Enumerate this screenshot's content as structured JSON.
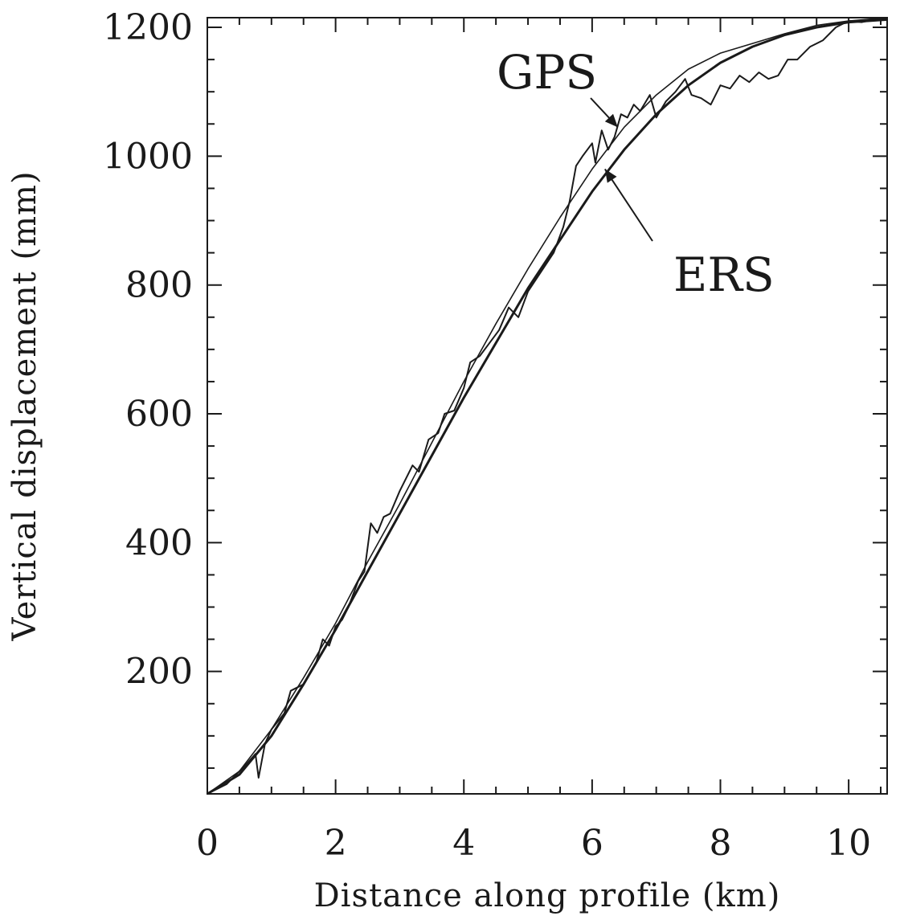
{
  "chart_data": {
    "type": "line",
    "title": "",
    "xlabel": "Distance along profile (km)",
    "ylabel": "Vertical displacement (mm)",
    "xlim": [
      0,
      10.6
    ],
    "ylim": [
      10,
      1215
    ],
    "x_ticks": [
      0,
      2,
      4,
      6,
      8,
      10
    ],
    "x_tick_labels": [
      "0",
      "2",
      "4",
      "6",
      "8",
      "10"
    ],
    "y_ticks": [
      200,
      400,
      600,
      800,
      1000,
      1200
    ],
    "y_tick_labels": [
      "200",
      "400",
      "600",
      "800",
      "1000",
      "1200"
    ],
    "grid": false,
    "annotations": [
      {
        "text": "GPS",
        "points_to": [
          6.4,
          1045
        ]
      },
      {
        "text": "ERS",
        "points_to": [
          6.2,
          980
        ]
      }
    ],
    "series": [
      {
        "name": "GPS",
        "style": "noisy",
        "x": [
          0.0,
          0.3,
          0.6,
          0.75,
          0.8,
          0.9,
          1.0,
          1.2,
          1.3,
          1.5,
          1.7,
          1.8,
          1.9,
          2.0,
          2.1,
          2.2,
          2.35,
          2.45,
          2.55,
          2.65,
          2.75,
          2.85,
          3.0,
          3.2,
          3.3,
          3.45,
          3.6,
          3.7,
          3.85,
          4.0,
          4.1,
          4.25,
          4.4,
          4.55,
          4.7,
          4.85,
          5.0,
          5.2,
          5.4,
          5.55,
          5.65,
          5.75,
          5.85,
          6.0,
          6.05,
          6.15,
          6.25,
          6.35,
          6.45,
          6.55,
          6.65,
          6.75,
          6.9,
          7.0,
          7.15,
          7.3,
          7.45,
          7.55,
          7.7,
          7.85,
          8.0,
          8.15,
          8.3,
          8.45,
          8.6,
          8.75,
          8.9,
          9.05,
          9.2,
          9.4,
          9.6,
          9.8,
          10.0,
          10.2,
          10.4,
          10.6
        ],
        "y": [
          10,
          25,
          55,
          72,
          35,
          88,
          110,
          135,
          170,
          180,
          215,
          250,
          240,
          270,
          280,
          300,
          340,
          355,
          430,
          415,
          440,
          445,
          480,
          520,
          510,
          560,
          570,
          600,
          605,
          640,
          680,
          690,
          710,
          730,
          765,
          750,
          790,
          820,
          850,
          890,
          930,
          985,
          1000,
          1020,
          990,
          1040,
          1010,
          1030,
          1065,
          1060,
          1080,
          1070,
          1095,
          1060,
          1085,
          1100,
          1120,
          1095,
          1090,
          1080,
          1110,
          1105,
          1125,
          1115,
          1130,
          1120,
          1125,
          1150,
          1150,
          1170,
          1180,
          1200,
          1210,
          1208,
          1212,
          1214
        ]
      },
      {
        "name": "",
        "style": "thin-smooth",
        "x": [
          0,
          0.5,
          1,
          1.5,
          2,
          2.5,
          3,
          3.5,
          4,
          4.5,
          5,
          5.5,
          6,
          6.5,
          7,
          7.5,
          8,
          8.5,
          9,
          9.5,
          10,
          10.6
        ],
        "y": [
          10,
          45,
          110,
          190,
          275,
          370,
          460,
          555,
          650,
          740,
          825,
          905,
          980,
          1045,
          1095,
          1135,
          1160,
          1175,
          1190,
          1203,
          1210,
          1215
        ]
      },
      {
        "name": "ERS",
        "style": "thick-smooth",
        "x": [
          0,
          0.5,
          1,
          1.5,
          2,
          2.5,
          3,
          3.5,
          4,
          4.5,
          5,
          5.5,
          6,
          6.5,
          7,
          7.5,
          8,
          8.5,
          9,
          9.5,
          10,
          10.6
        ],
        "y": [
          10,
          40,
          100,
          180,
          265,
          355,
          445,
          535,
          625,
          710,
          795,
          870,
          945,
          1010,
          1065,
          1110,
          1145,
          1170,
          1188,
          1200,
          1208,
          1212
        ]
      }
    ]
  }
}
